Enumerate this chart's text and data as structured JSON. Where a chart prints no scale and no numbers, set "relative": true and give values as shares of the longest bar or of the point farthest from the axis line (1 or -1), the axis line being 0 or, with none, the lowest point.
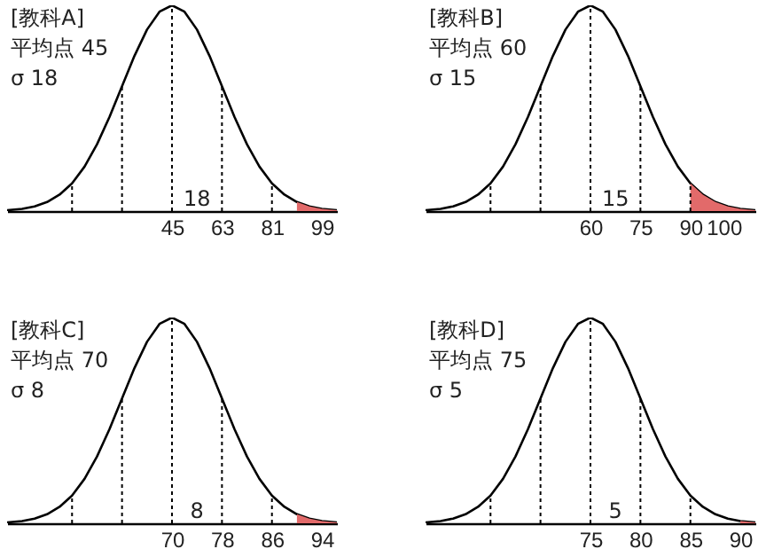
{
  "chart_data": [
    {
      "type": "line",
      "relative": true,
      "grid": false,
      "annotations": [
        "[教科A]",
        "平均点 45",
        "σ 18",
        "18"
      ],
      "xlim": [
        -14.4,
        104.4
      ],
      "xticks": [
        45,
        63,
        81,
        99
      ],
      "ref_lines": [
        {
          "axis": "x",
          "value": 9,
          "line_style": "dotted"
        },
        {
          "axis": "x",
          "value": 27,
          "line_style": "dotted"
        },
        {
          "axis": "x",
          "value": 45,
          "line_style": "dotted"
        },
        {
          "axis": "x",
          "value": 63,
          "line_style": "dotted"
        },
        {
          "axis": "x",
          "value": 81,
          "line_style": "dotted"
        }
      ],
      "series": [
        {
          "color": "#000000",
          "x": [
            -14.4,
            -9,
            -4.5,
            0,
            4.5,
            9,
            13.5,
            18,
            22.5,
            27,
            31.5,
            36,
            40.5,
            45,
            49.5,
            54,
            58.5,
            63,
            67.5,
            72,
            76.5,
            81,
            85.5,
            90,
            94.5,
            99,
            104.4
          ],
          "values": [
            0.004,
            0.011,
            0.023,
            0.044,
            0.08,
            0.135,
            0.216,
            0.325,
            0.458,
            0.607,
            0.755,
            0.882,
            0.969,
            1,
            0.969,
            0.882,
            0.755,
            0.607,
            0.458,
            0.325,
            0.216,
            0.135,
            0.08,
            0.044,
            0.023,
            0.011,
            0.004
          ]
        },
        {
          "type": "area",
          "color": "#e26a6a",
          "x": [
            90,
            94.5,
            99,
            104.4
          ],
          "values": [
            0.044,
            0.023,
            0.011,
            0.004
          ]
        }
      ]
    },
    {
      "type": "line",
      "relative": true,
      "grid": false,
      "annotations": [
        "[教科B]",
        "平均点 60",
        "σ 15",
        "15"
      ],
      "xlim": [
        10.5,
        109.5
      ],
      "xticks": [
        60,
        75,
        90,
        100
      ],
      "ref_lines": [
        {
          "axis": "x",
          "value": 30,
          "line_style": "dotted"
        },
        {
          "axis": "x",
          "value": 45,
          "line_style": "dotted"
        },
        {
          "axis": "x",
          "value": 60,
          "line_style": "dotted"
        },
        {
          "axis": "x",
          "value": 75,
          "line_style": "dotted"
        },
        {
          "axis": "x",
          "value": 90,
          "line_style": "dotted"
        }
      ],
      "series": [
        {
          "color": "#000000",
          "x": [
            10.5,
            15,
            18.75,
            22.5,
            26.25,
            30,
            33.75,
            37.5,
            41.25,
            45,
            48.75,
            52.5,
            56.25,
            60,
            63.75,
            67.5,
            71.25,
            75,
            78.75,
            82.5,
            86.25,
            90,
            93.75,
            97.5,
            101.25,
            105,
            109.5
          ],
          "values": [
            0.004,
            0.011,
            0.023,
            0.044,
            0.08,
            0.135,
            0.216,
            0.325,
            0.458,
            0.607,
            0.755,
            0.882,
            0.969,
            1,
            0.969,
            0.882,
            0.755,
            0.607,
            0.458,
            0.325,
            0.216,
            0.135,
            0.08,
            0.044,
            0.023,
            0.011,
            0.004
          ]
        },
        {
          "type": "area",
          "color": "#e26a6a",
          "x": [
            90,
            93.75,
            97.5,
            101.25,
            105,
            109.5
          ],
          "values": [
            0.135,
            0.08,
            0.044,
            0.023,
            0.011,
            0.004
          ]
        }
      ]
    },
    {
      "type": "line",
      "relative": true,
      "grid": false,
      "annotations": [
        "[教科C]",
        "平均点 70",
        "σ 8",
        "8"
      ],
      "xlim": [
        43.6,
        96.4
      ],
      "xticks": [
        70,
        78,
        86,
        94
      ],
      "ref_lines": [
        {
          "axis": "x",
          "value": 54,
          "line_style": "dotted"
        },
        {
          "axis": "x",
          "value": 62,
          "line_style": "dotted"
        },
        {
          "axis": "x",
          "value": 70,
          "line_style": "dotted"
        },
        {
          "axis": "x",
          "value": 78,
          "line_style": "dotted"
        },
        {
          "axis": "x",
          "value": 86,
          "line_style": "dotted"
        }
      ],
      "series": [
        {
          "color": "#000000",
          "x": [
            43.6,
            46,
            48,
            50,
            52,
            54,
            56,
            58,
            60,
            62,
            64,
            66,
            68,
            70,
            72,
            74,
            76,
            78,
            80,
            82,
            84,
            86,
            88,
            90,
            92,
            94,
            96.4
          ],
          "values": [
            0.004,
            0.011,
            0.023,
            0.044,
            0.08,
            0.135,
            0.216,
            0.325,
            0.458,
            0.607,
            0.755,
            0.882,
            0.969,
            1,
            0.969,
            0.882,
            0.755,
            0.607,
            0.458,
            0.325,
            0.216,
            0.135,
            0.08,
            0.044,
            0.023,
            0.011,
            0.004
          ]
        },
        {
          "type": "area",
          "color": "#e26a6a",
          "x": [
            90,
            92,
            94,
            96.4
          ],
          "values": [
            0.044,
            0.023,
            0.011,
            0.004
          ]
        }
      ]
    },
    {
      "type": "line",
      "relative": true,
      "grid": false,
      "annotations": [
        "[教科D]",
        "平均点 75",
        "σ 5",
        "5"
      ],
      "xlim": [
        58.5,
        91.5
      ],
      "xticks": [
        75,
        80,
        85,
        90
      ],
      "ref_lines": [
        {
          "axis": "x",
          "value": 65,
          "line_style": "dotted"
        },
        {
          "axis": "x",
          "value": 70,
          "line_style": "dotted"
        },
        {
          "axis": "x",
          "value": 75,
          "line_style": "dotted"
        },
        {
          "axis": "x",
          "value": 80,
          "line_style": "dotted"
        },
        {
          "axis": "x",
          "value": 85,
          "line_style": "dotted"
        }
      ],
      "series": [
        {
          "color": "#000000",
          "x": [
            58.5,
            60,
            61.25,
            62.5,
            63.75,
            65,
            66.25,
            67.5,
            68.75,
            70,
            71.25,
            72.5,
            73.75,
            75,
            76.25,
            77.5,
            78.75,
            80,
            81.25,
            82.5,
            83.75,
            85,
            86.25,
            87.5,
            88.75,
            90,
            91.5
          ],
          "values": [
            0.004,
            0.011,
            0.023,
            0.044,
            0.08,
            0.135,
            0.216,
            0.325,
            0.458,
            0.607,
            0.755,
            0.882,
            0.969,
            1,
            0.969,
            0.882,
            0.755,
            0.607,
            0.458,
            0.325,
            0.216,
            0.135,
            0.08,
            0.044,
            0.023,
            0.011,
            0.004
          ]
        },
        {
          "type": "area",
          "color": "#e26a6a",
          "x": [
            90,
            91.5
          ],
          "values": [
            0.011,
            0.004
          ]
        }
      ]
    }
  ]
}
